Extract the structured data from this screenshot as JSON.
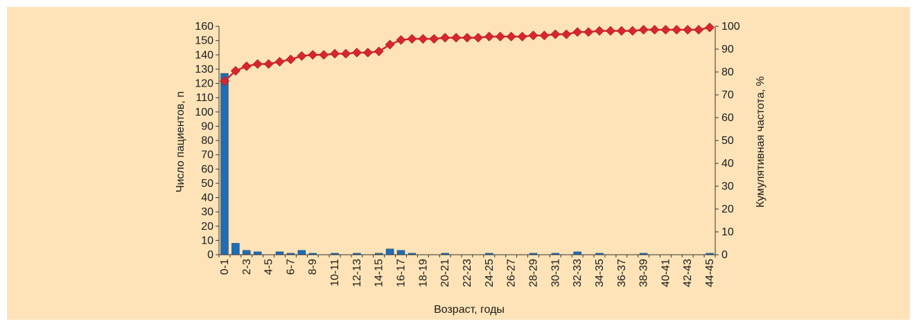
{
  "chart_data": {
    "type": "bar",
    "categories": [
      "0-1",
      "1-2",
      "2-3",
      "3-4",
      "4-5",
      "5-6",
      "6-7",
      "7-8",
      "8-9",
      "9-10",
      "10-11",
      "11-12",
      "12-13",
      "13-14",
      "14-15",
      "15-16",
      "16-17",
      "17-18",
      "18-19",
      "19-20",
      "20-21",
      "21-22",
      "22-23",
      "23-24",
      "24-25",
      "25-26",
      "26-27",
      "27-28",
      "28-29",
      "29-30",
      "30-31",
      "31-32",
      "32-33",
      "33-34",
      "34-35",
      "35-36",
      "36-37",
      "37-38",
      "38-39",
      "39-40",
      "40-41",
      "41-42",
      "42-43",
      "43-44",
      "44-45"
    ],
    "tick_labels": [
      "0-1",
      "",
      "2-3",
      "",
      "4-5",
      "",
      "6-7",
      "",
      "8-9",
      "",
      "10-11",
      "",
      "12-13",
      "",
      "14-15",
      "",
      "16-17",
      "",
      "18-19",
      "",
      "20-21",
      "",
      "22-23",
      "",
      "24-25",
      "",
      "26-27",
      "",
      "28-29",
      "",
      "30-31",
      "",
      "32-33",
      "",
      "34-35",
      "",
      "36-37",
      "",
      "38-39",
      "",
      "40-41",
      "",
      "42-43",
      "",
      "44-45"
    ],
    "series": [
      {
        "axis": "left",
        "type": "bar",
        "color": "#1f6db5",
        "values": [
          127,
          8,
          3,
          2,
          0,
          2,
          1,
          3,
          1,
          0,
          1,
          0,
          1,
          0,
          1,
          4,
          3,
          1,
          0,
          0,
          1,
          0,
          0,
          0,
          1,
          0,
          0,
          0,
          1,
          0,
          1,
          0,
          2,
          0,
          1,
          0,
          0,
          0,
          1,
          0,
          0,
          0,
          0,
          0,
          1
        ]
      },
      {
        "axis": "right",
        "type": "line",
        "marker": "diamond",
        "color": "#d7262d",
        "values": [
          76,
          80.5,
          82.5,
          83.5,
          83.5,
          84.5,
          85.5,
          87,
          87.5,
          87.5,
          88,
          88,
          88.5,
          88.5,
          89,
          92,
          94,
          94.5,
          94.5,
          94.5,
          95,
          95,
          95,
          95,
          95.5,
          95.5,
          95.5,
          95.5,
          96,
          96,
          96.5,
          96.5,
          97.5,
          97.5,
          98,
          98,
          98,
          98,
          98.5,
          98.5,
          98.5,
          98.5,
          98.5,
          98.5,
          99.5
        ]
      }
    ],
    "xlabel": "Возраст, годы",
    "ylabel": "Число пациентов, n",
    "y2label": "Кумулятивная частота, %",
    "ylim": [
      0,
      160
    ],
    "y_ticks": [
      0,
      10,
      20,
      30,
      40,
      50,
      60,
      70,
      80,
      90,
      100,
      110,
      120,
      130,
      140,
      150,
      160
    ],
    "y2lim": [
      0,
      100
    ],
    "y2_ticks": [
      0,
      10,
      20,
      30,
      40,
      50,
      60,
      70,
      80,
      90,
      100
    ],
    "grid": false,
    "legend": "none"
  }
}
